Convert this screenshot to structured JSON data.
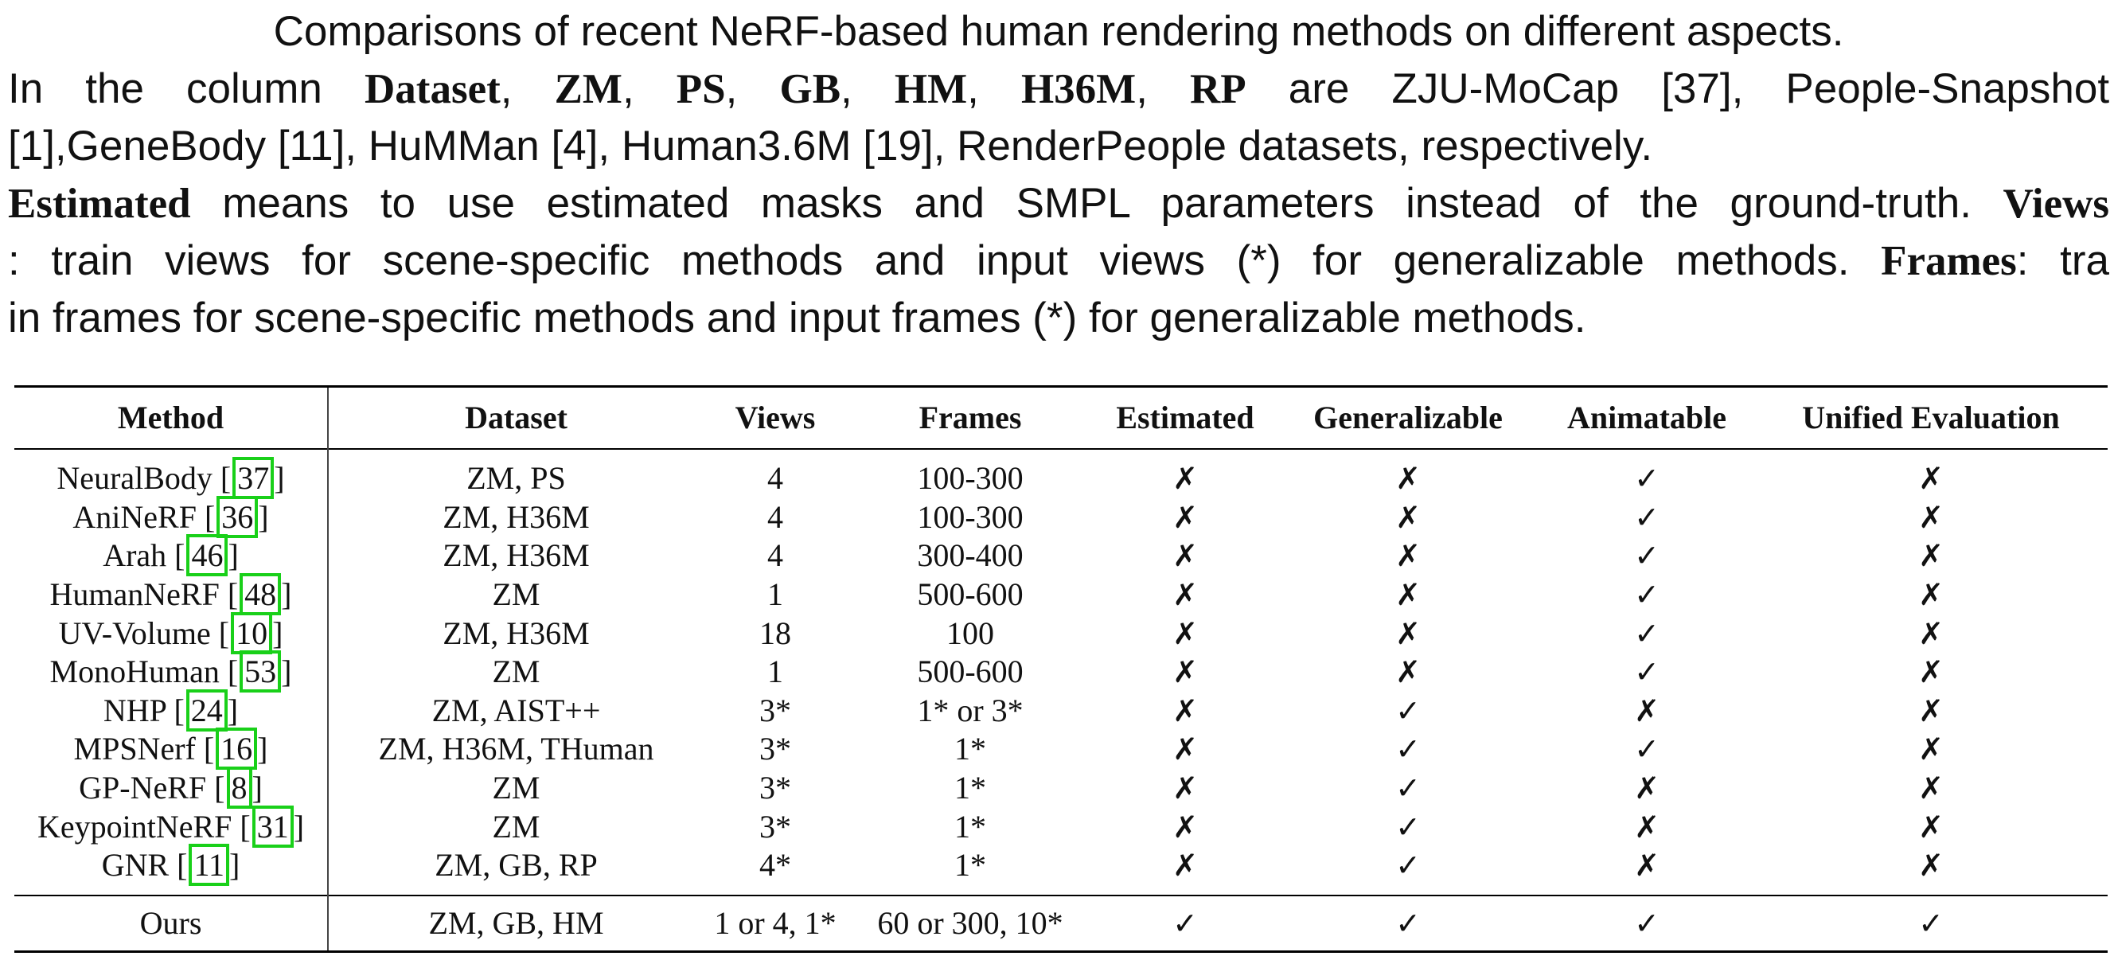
{
  "caption": {
    "line1": "Comparisons of recent NeRF-based human rendering methods on different aspects.",
    "line2_pre": "In the column ",
    "line2_b1": "Dataset",
    "line2_c1": ", ",
    "line2_b2": "ZM",
    "line2_c2": ", ",
    "line2_b3": "PS",
    "line2_c3": ", ",
    "line2_b4": "GB",
    "line2_c4": ", ",
    "line2_b5": "HM",
    "line2_c5": ", ",
    "line2_b6": "H36M",
    "line2_c6": ", ",
    "line2_b7": "RP",
    "line2_post": " are ZJU-MoCap [37], People-Snapshot",
    "line3": "[1],GeneBody [11], HuMMan [4], Human3.6M [19], RenderPeople datasets, respectively.",
    "line4_b1": "Estimated",
    "line4_mid": " means to use estimated masks and SMPL parameters instead of the ground-truth. ",
    "line4_b2": "Views",
    "line5_pre": ": train views for scene-specific methods and input views (*) for generalizable methods. ",
    "line5_b": "Frames",
    "line5_post": ": tra",
    "line6": "in frames for scene-specific methods and input frames (*) for generalizable methods."
  },
  "table": {
    "headers": [
      "Method",
      "Dataset",
      "Views",
      "Frames",
      "Estimated",
      "Generalizable",
      "Animatable",
      "Unified Evaluation"
    ],
    "rows": [
      {
        "method": "NeuralBody [",
        "ref": "37",
        "close": "]",
        "dataset": "ZM, PS",
        "views": "4",
        "frames": "100-300",
        "estimated": "✗",
        "generalizable": "✗",
        "animatable": "✓",
        "unified": "✗"
      },
      {
        "method": "AniNeRF [",
        "ref": "36",
        "close": "]",
        "dataset": "ZM, H36M",
        "views": "4",
        "frames": "100-300",
        "estimated": "✗",
        "generalizable": "✗",
        "animatable": "✓",
        "unified": "✗"
      },
      {
        "method": "Arah [",
        "ref": "46",
        "close": "]",
        "dataset": "ZM, H36M",
        "views": "4",
        "frames": "300-400",
        "estimated": "✗",
        "generalizable": "✗",
        "animatable": "✓",
        "unified": "✗"
      },
      {
        "method": "HumanNeRF [",
        "ref": "48",
        "close": "]",
        "dataset": "ZM",
        "views": "1",
        "frames": "500-600",
        "estimated": "✗",
        "generalizable": "✗",
        "animatable": "✓",
        "unified": "✗"
      },
      {
        "method": "UV-Volume [",
        "ref": "10",
        "close": "]",
        "dataset": "ZM, H36M",
        "views": "18",
        "frames": "100",
        "estimated": "✗",
        "generalizable": "✗",
        "animatable": "✓",
        "unified": "✗"
      },
      {
        "method": "MonoHuman [",
        "ref": "53",
        "close": "]",
        "dataset": "ZM",
        "views": "1",
        "frames": "500-600",
        "estimated": "✗",
        "generalizable": "✗",
        "animatable": "✓",
        "unified": "✗"
      },
      {
        "method": "NHP [",
        "ref": "24",
        "close": "]",
        "dataset": "ZM, AIST++",
        "views": "3*",
        "frames": "1* or 3*",
        "estimated": "✗",
        "generalizable": "✓",
        "animatable": "✗",
        "unified": "✗"
      },
      {
        "method": "MPSNerf [",
        "ref": "16",
        "close": "]",
        "dataset": "ZM, H36M, THuman",
        "views": "3*",
        "frames": "1*",
        "estimated": "✗",
        "generalizable": "✓",
        "animatable": "✓",
        "unified": "✗"
      },
      {
        "method": "GP-NeRF [",
        "ref": "8",
        "close": "]",
        "dataset": "ZM",
        "views": "3*",
        "frames": "1*",
        "estimated": "✗",
        "generalizable": "✓",
        "animatable": "✗",
        "unified": "✗"
      },
      {
        "method": "KeypointNeRF [",
        "ref": "31",
        "close": "]",
        "dataset": "ZM",
        "views": "3*",
        "frames": "1*",
        "estimated": "✗",
        "generalizable": "✓",
        "animatable": "✗",
        "unified": "✗"
      },
      {
        "method": "GNR [",
        "ref": "11",
        "close": "]",
        "dataset": "ZM, GB, RP",
        "views": "4*",
        "frames": "1*",
        "estimated": "✗",
        "generalizable": "✓",
        "animatable": "✗",
        "unified": "✗"
      }
    ],
    "ours": {
      "method": "Ours",
      "dataset": "ZM, GB, HM",
      "views": "1 or 4, 1*",
      "frames": "60 or 300, 10*",
      "estimated": "✓",
      "generalizable": "✓",
      "animatable": "✓",
      "unified": "✓"
    }
  }
}
